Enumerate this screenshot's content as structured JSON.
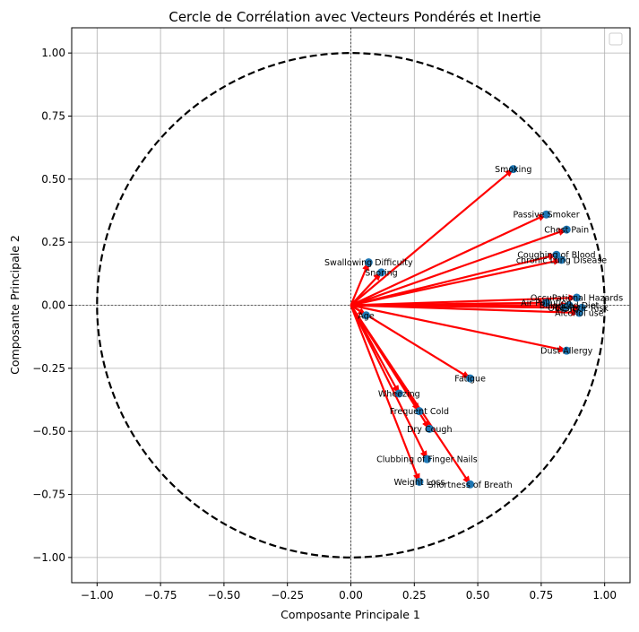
{
  "chart_data": {
    "type": "scatter",
    "title": "Cercle de Corrélation avec Vecteurs Pondérés et Inertie",
    "xlabel": "Composante Principale 1",
    "ylabel": "Composante Principale 2",
    "xlim": [
      -1.1,
      1.1
    ],
    "ylim": [
      -1.1,
      1.1
    ],
    "grid": true,
    "legend": "top-right",
    "unit_circle": true,
    "x_ticks": [
      "−1.00",
      "−0.75",
      "−0.50",
      "−0.25",
      "0.00",
      "0.25",
      "0.50",
      "0.75",
      "1.00"
    ],
    "y_ticks": [
      "−1.00",
      "−0.75",
      "−0.50",
      "−0.25",
      "0.00",
      "0.25",
      "0.50",
      "0.75",
      "1.00"
    ],
    "x_tick_values": [
      -1,
      -0.75,
      -0.5,
      -0.25,
      0,
      0.25,
      0.5,
      0.75,
      1
    ],
    "y_tick_values": [
      -1,
      -0.75,
      -0.5,
      -0.25,
      0,
      0.25,
      0.5,
      0.75,
      1
    ],
    "colors": {
      "point": "#1f77b4",
      "arrow": "#ff0000",
      "circle": "#000000",
      "grid": "#b0b0b0"
    },
    "points": [
      {
        "label": "Smoking",
        "x": 0.64,
        "y": 0.54
      },
      {
        "label": "Passive Smoker",
        "x": 0.77,
        "y": 0.36
      },
      {
        "label": "Chest Pain",
        "x": 0.85,
        "y": 0.3
      },
      {
        "label": "Coughing of Blood",
        "x": 0.81,
        "y": 0.2
      },
      {
        "label": "chronic Lung Disease",
        "x": 0.83,
        "y": 0.18
      },
      {
        "label": "Swallowing Difficulty",
        "x": 0.07,
        "y": 0.17
      },
      {
        "label": "Snoring",
        "x": 0.12,
        "y": 0.13
      },
      {
        "label": "OccuPational Hazards",
        "x": 0.89,
        "y": 0.03
      },
      {
        "label": "Air Pollution",
        "x": 0.77,
        "y": 0.01
      },
      {
        "label": "Genetic Risk",
        "x": 0.91,
        "y": -0.01
      },
      {
        "label": "Alcohol use",
        "x": 0.9,
        "y": -0.03
      },
      {
        "label": "Balanced Diet",
        "x": 0.86,
        "y": 0.0
      },
      {
        "label": "Obesity",
        "x": 0.84,
        "y": -0.01
      },
      {
        "label": "Age",
        "x": 0.06,
        "y": -0.04
      },
      {
        "label": "Dust Allergy",
        "x": 0.85,
        "y": -0.18
      },
      {
        "label": "Fatigue",
        "x": 0.47,
        "y": -0.29
      },
      {
        "label": "Wheezing",
        "x": 0.19,
        "y": -0.35
      },
      {
        "label": "Frequent Cold",
        "x": 0.27,
        "y": -0.42
      },
      {
        "label": "Dry Cough",
        "x": 0.31,
        "y": -0.49
      },
      {
        "label": "Clubbing of Finger Nails",
        "x": 0.3,
        "y": -0.61
      },
      {
        "label": "Weight Loss",
        "x": 0.27,
        "y": -0.7
      },
      {
        "label": "Shortness of Breath",
        "x": 0.47,
        "y": -0.71
      }
    ]
  }
}
